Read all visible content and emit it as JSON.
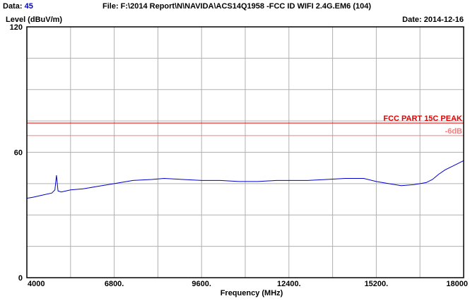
{
  "header": {
    "data_label": "Data:",
    "data_value": "45",
    "file_line": "File: F:\\2014 Report\\N\\NAVIDA\\ACS14Q1958 -FCC ID WIFI 2.4G.EM6  (104)",
    "ylabel": "Level (dBuV/m)",
    "date_line": "Date: 2014-12-16"
  },
  "chart_data": {
    "type": "line",
    "title": "",
    "xlabel": "Frequency (MHz)",
    "ylabel": "Level (dBuV/m)",
    "xlim": [
      4000,
      18000
    ],
    "ylim": [
      0,
      120
    ],
    "x_ticks": [
      {
        "value": 4000,
        "label": "4000"
      },
      {
        "value": 6800,
        "label": "6800."
      },
      {
        "value": 9600,
        "label": "9600."
      },
      {
        "value": 12400,
        "label": "12400."
      },
      {
        "value": 15200,
        "label": "15200."
      },
      {
        "value": 18000,
        "label": "18000"
      }
    ],
    "y_ticks": [
      {
        "value": 0,
        "label": "0"
      },
      {
        "value": 60,
        "label": "60"
      },
      {
        "value": 120,
        "label": "120"
      }
    ],
    "grid": true,
    "limit_lines": [
      {
        "name": "FCC PART 15C  PEAK",
        "value": 74,
        "color": "#e60000"
      },
      {
        "name": "-6dB",
        "value": 68,
        "color": "#f08080"
      }
    ],
    "series": [
      {
        "color": "#0000cc",
        "x": [
          4000,
          4200,
          4500,
          4800,
          4900,
          4950,
          5000,
          5100,
          5400,
          5800,
          6200,
          6800,
          7400,
          8000,
          8400,
          9000,
          9600,
          10200,
          10800,
          11400,
          12000,
          12400,
          13000,
          13600,
          14200,
          14800,
          15200,
          15600,
          16000,
          16400,
          16800,
          17000,
          17200,
          17400,
          17600,
          17800,
          18000
        ],
        "y": [
          38,
          38.5,
          39.5,
          40.5,
          42,
          49,
          41.5,
          41,
          42,
          42.5,
          43.5,
          45,
          46.5,
          47,
          47.5,
          47,
          46.5,
          46.5,
          46,
          46,
          46.5,
          46.5,
          46.5,
          47,
          47.5,
          47.5,
          46,
          45,
          44,
          44.5,
          45.5,
          47,
          49.5,
          51.5,
          53,
          54.5,
          56
        ]
      }
    ]
  }
}
